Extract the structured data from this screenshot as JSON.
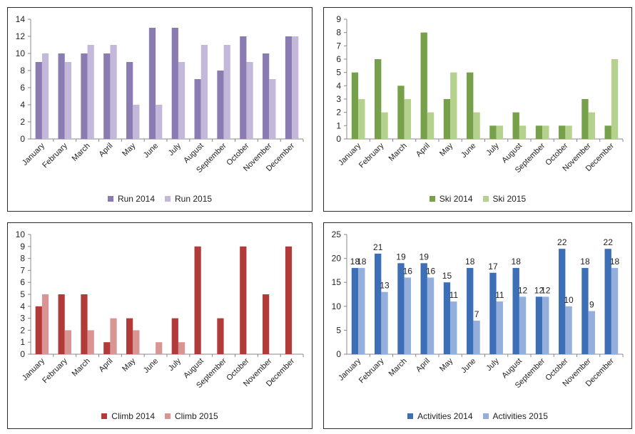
{
  "chart_data": [
    {
      "type": "bar",
      "title": "",
      "categories": [
        "January",
        "February",
        "March",
        "April",
        "May",
        "June",
        "July",
        "August",
        "September",
        "October",
        "November",
        "December"
      ],
      "series": [
        {
          "name": "Run 2014",
          "values": [
            9,
            10,
            10,
            10,
            9,
            13,
            13,
            7,
            8,
            12,
            10,
            12
          ],
          "color": "#8b7bb3"
        },
        {
          "name": "Run 2015",
          "values": [
            10,
            9,
            11,
            11,
            4,
            4,
            9,
            11,
            11,
            9,
            7,
            12
          ],
          "color": "#c3b8d9"
        }
      ],
      "ylim": [
        0,
        14
      ],
      "ystep": 2,
      "grid": false,
      "data_labels": false,
      "legend": "bottom"
    },
    {
      "type": "bar",
      "title": "",
      "categories": [
        "January",
        "February",
        "March",
        "April",
        "May",
        "June",
        "July",
        "August",
        "September",
        "October",
        "November",
        "December"
      ],
      "series": [
        {
          "name": "Ski 2014",
          "values": [
            5,
            6,
            4,
            8,
            3,
            5,
            1,
            2,
            1,
            1,
            3,
            1
          ],
          "color": "#76a04a"
        },
        {
          "name": "Ski 2015",
          "values": [
            3,
            2,
            3,
            2,
            5,
            2,
            1,
            1,
            1,
            1,
            2,
            6
          ],
          "color": "#b5d18e"
        }
      ],
      "ylim": [
        0,
        9
      ],
      "ystep": 1,
      "grid": false,
      "data_labels": false,
      "legend": "bottom"
    },
    {
      "type": "bar",
      "title": "",
      "categories": [
        "January",
        "February",
        "March",
        "April",
        "May",
        "June",
        "July",
        "August",
        "September",
        "October",
        "November",
        "December"
      ],
      "series": [
        {
          "name": "Climb 2014",
          "values": [
            4,
            5,
            5,
            1,
            3,
            0,
            3,
            9,
            3,
            9,
            5,
            9
          ],
          "color": "#b23a38"
        },
        {
          "name": "Climb 2015",
          "values": [
            5,
            2,
            2,
            3,
            2,
            1,
            1,
            0,
            0,
            0,
            0,
            0
          ],
          "color": "#d99594"
        }
      ],
      "ylim": [
        0,
        10
      ],
      "ystep": 1,
      "grid": false,
      "data_labels": false,
      "legend": "bottom"
    },
    {
      "type": "bar",
      "title": "",
      "categories": [
        "January",
        "February",
        "March",
        "April",
        "May",
        "June",
        "July",
        "August",
        "September",
        "October",
        "November",
        "December"
      ],
      "series": [
        {
          "name": "Activities 2014",
          "values": [
            18,
            21,
            19,
            19,
            15,
            18,
            17,
            18,
            12,
            22,
            18,
            22
          ],
          "color": "#3d6fb6"
        },
        {
          "name": "Activities 2015",
          "values": [
            18,
            13,
            16,
            16,
            11,
            7,
            11,
            12,
            12,
            10,
            9,
            18
          ],
          "color": "#94afdc"
        }
      ],
      "ylim": [
        0,
        25
      ],
      "ystep": 5,
      "grid": false,
      "data_labels": true,
      "legend": "bottom"
    }
  ]
}
